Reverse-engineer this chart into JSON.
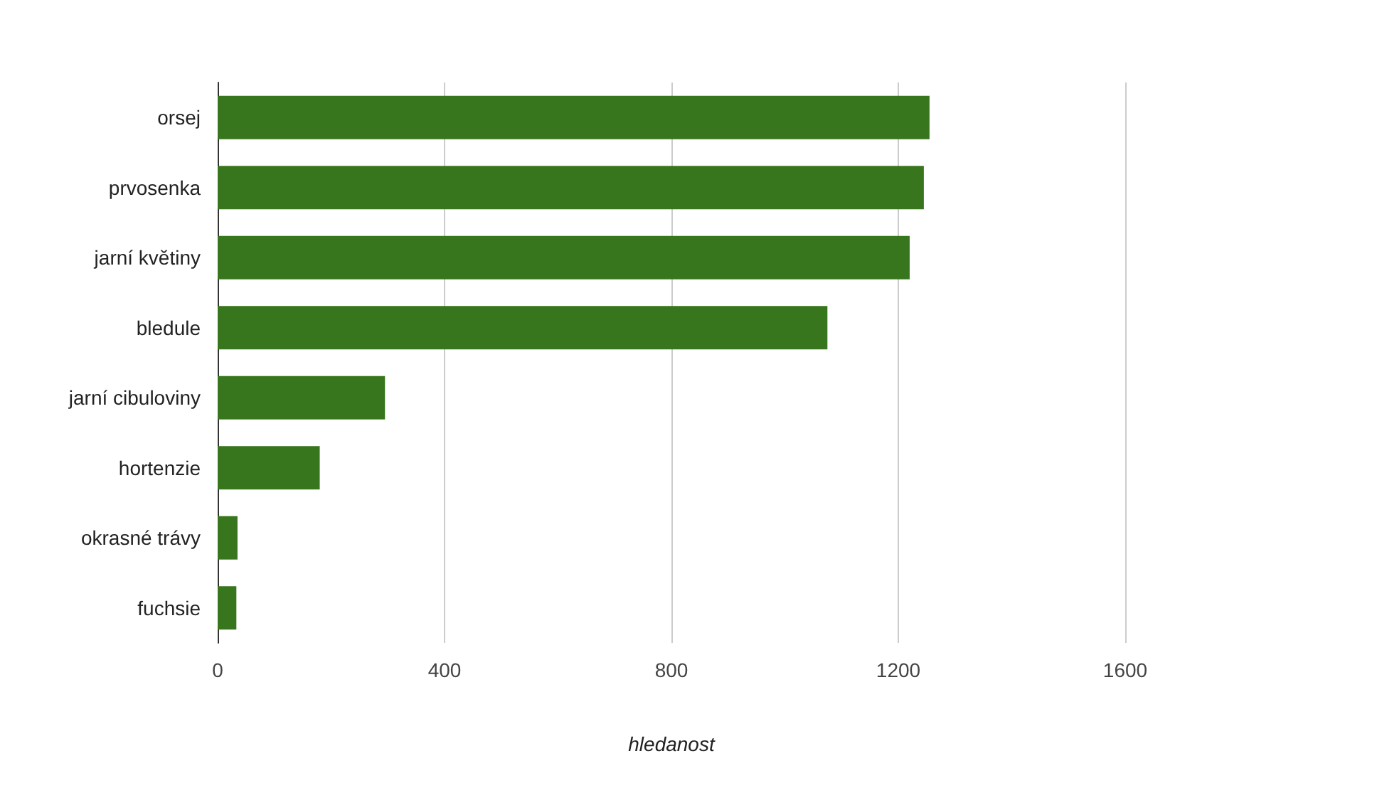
{
  "chart_data": {
    "type": "bar",
    "orientation": "horizontal",
    "xlabel": "hledanost",
    "categories": [
      "orsej",
      "prvosenka",
      "jarní květiny",
      "bledule",
      "jarní cibuloviny",
      "hortenzie",
      "okrasné trávy",
      "fuchsie"
    ],
    "values": [
      1255,
      1245,
      1220,
      1075,
      295,
      180,
      35,
      33
    ],
    "color": "#38761d",
    "xlim": [
      0,
      1600
    ],
    "xticks": [
      0,
      400,
      800,
      1200,
      1600
    ],
    "grid": "x"
  }
}
